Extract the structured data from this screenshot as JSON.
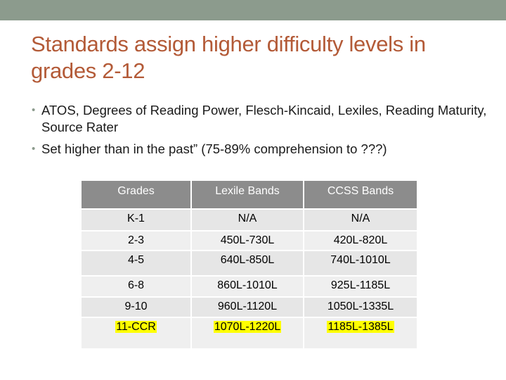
{
  "slide": {
    "title": "Standards assign higher difficulty levels in grades 2-12",
    "bullets": [
      "ATOS, Degrees of Reading Power, Flesch-Kincaid, Lexiles, Reading Maturity, Source Rater",
      "Set higher than in the past” (75-89% comprehension to ???)"
    ]
  },
  "table": {
    "headers": [
      "Grades",
      "Lexile Bands",
      "CCSS Bands"
    ],
    "rows": [
      [
        "K-1",
        "N/A",
        "N/A"
      ],
      [
        "2-3",
        "450L-730L",
        "420L-820L"
      ],
      [
        "4-5",
        "640L-850L",
        "740L-1010L"
      ],
      [
        "6-8",
        "860L-1010L",
        "925L-1185L"
      ],
      [
        "9-10",
        "960L-1120L",
        "1050L-1335L"
      ],
      [
        "11-CCR",
        "1070L-1220L",
        "1185L-1385L"
      ]
    ],
    "highlight_color": "#ffff00"
  }
}
